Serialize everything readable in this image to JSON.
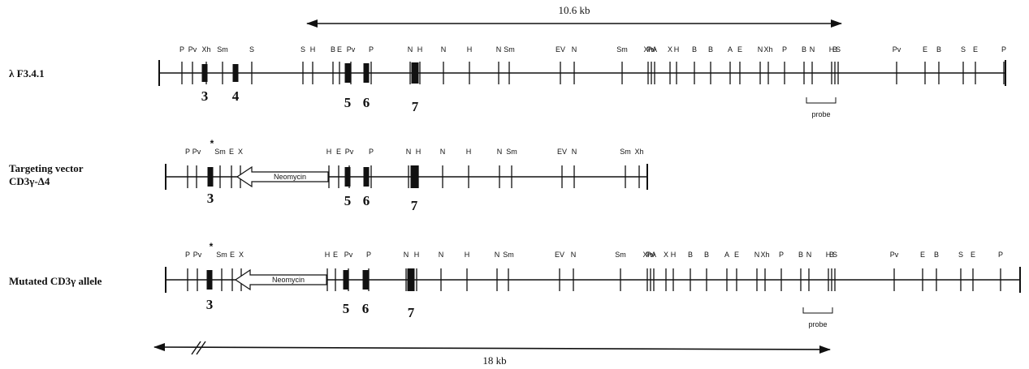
{
  "scale_top": {
    "label": "10.6 kb"
  },
  "scale_bottom": {
    "label": "18 kb"
  },
  "neomycin_label": "Neomycin",
  "probe_label": "probe",
  "star_mark": "*",
  "rows": [
    {
      "id": "lambda",
      "label_lines": [
        "λ F3.4.1"
      ],
      "sites": [
        "P",
        "Pv",
        "Xh",
        "Sm",
        "S",
        "S",
        "H",
        "B",
        "E",
        "Pv",
        "P",
        "N",
        "H",
        "N",
        "H",
        "N",
        "Sm",
        "EV",
        "N",
        "Sm",
        "Xh",
        "Pv",
        "A",
        "X",
        "H",
        "B",
        "B",
        "A",
        "E",
        "N",
        "Xh",
        "P",
        "B",
        "N",
        "H",
        "B",
        "S",
        "Pv",
        "E",
        "B",
        "S",
        "E",
        "P"
      ],
      "exons": [
        "3",
        "4",
        "5",
        "6",
        "7"
      ]
    },
    {
      "id": "targeting",
      "label_lines": [
        "Targeting vector",
        "CD3γ-Δ4"
      ],
      "sites": [
        "P",
        "Pv",
        "Sm",
        "E",
        "X",
        "H",
        "E",
        "Pv",
        "P",
        "N",
        "H",
        "N",
        "H",
        "N",
        "Sm",
        "EV",
        "N",
        "Sm",
        "Xh"
      ],
      "exons": [
        "3",
        "5",
        "6",
        "7"
      ]
    },
    {
      "id": "mutated",
      "label_lines": [
        "Mutated CD3γ allele"
      ],
      "sites": [
        "P",
        "Pv",
        "Sm",
        "E",
        "X",
        "H",
        "E",
        "Pv",
        "P",
        "N",
        "H",
        "N",
        "H",
        "N",
        "Sm",
        "EV",
        "N",
        "Sm",
        "Xh",
        "Pv",
        "A",
        "X",
        "H",
        "B",
        "B",
        "A",
        "E",
        "N",
        "Xh",
        "P",
        "B",
        "N",
        "H",
        "B",
        "S",
        "Pv",
        "E",
        "B",
        "S",
        "E",
        "P"
      ],
      "exons": [
        "3",
        "5",
        "6",
        "7"
      ]
    }
  ]
}
